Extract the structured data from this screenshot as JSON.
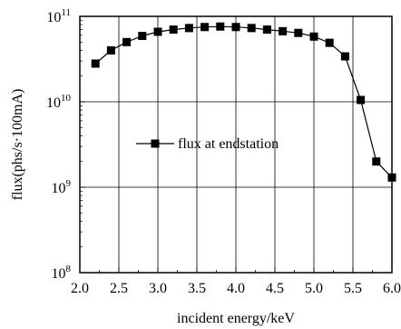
{
  "chart_data": {
    "type": "line",
    "xlabel": "incident energy/keV",
    "ylabel": "flux(phs/s·100mA)",
    "xlim": [
      2.0,
      6.0
    ],
    "ylim": [
      100000000.0,
      100000000000.0
    ],
    "yscale": "log",
    "grid": "vertical and horizontal major lines",
    "x_ticks": [
      "2.0",
      "2.5",
      "3.0",
      "3.5",
      "4.0",
      "4.5",
      "5.0",
      "5.5",
      "6.0"
    ],
    "y_ticks": [
      {
        "base": "10",
        "exp": "8"
      },
      {
        "base": "10",
        "exp": "9"
      },
      {
        "base": "10",
        "exp": "10"
      },
      {
        "base": "10",
        "exp": "11"
      }
    ],
    "legend": {
      "placement": "center-left",
      "label": "flux at endstation"
    },
    "series": [
      {
        "name": "flux at endstation",
        "x": [
          2.2,
          2.4,
          2.6,
          2.8,
          3.0,
          3.2,
          3.4,
          3.6,
          3.8,
          4.0,
          4.2,
          4.4,
          4.6,
          4.8,
          5.0,
          5.2,
          5.4,
          5.6,
          5.8,
          6.0
        ],
        "y": [
          28000000000.0,
          40000000000.0,
          50000000000.0,
          59000000000.0,
          66000000000.0,
          70000000000.0,
          73000000000.0,
          75000000000.0,
          76000000000.0,
          75000000000.0,
          73000000000.0,
          70000000000.0,
          67000000000.0,
          64000000000.0,
          58000000000.0,
          49000000000.0,
          34000000000.0,
          10500000000.0,
          2000000000.0,
          1300000000.0
        ]
      }
    ]
  }
}
